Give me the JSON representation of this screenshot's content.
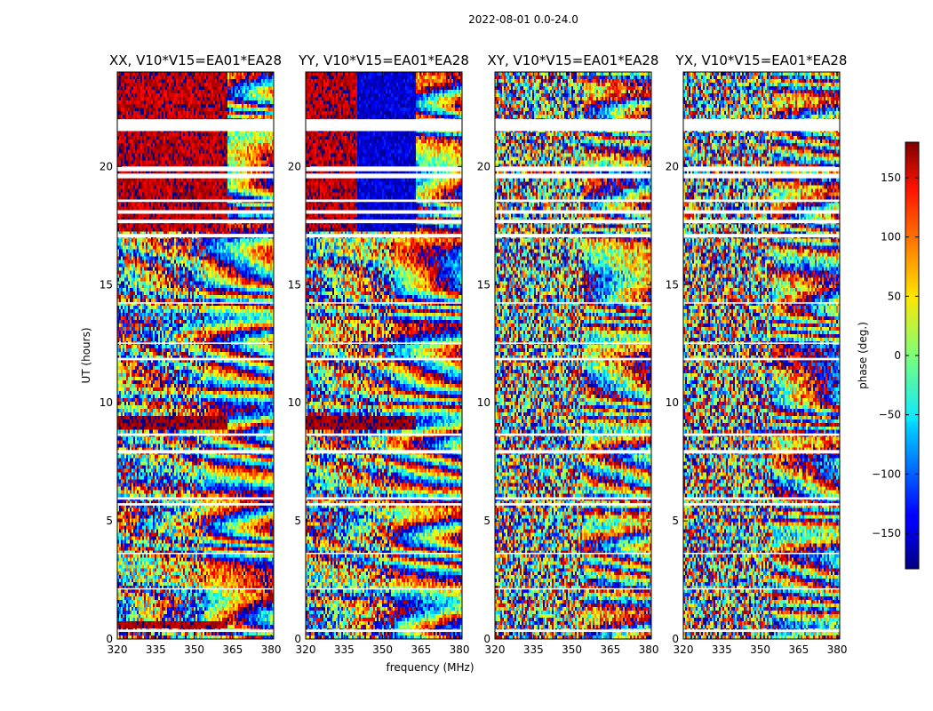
{
  "figure_title": "2022-08-01 0.0-24.0",
  "chart_data": [
    {
      "type": "heatmap",
      "title": "XX, V10*V15=EA01*EA28",
      "pol": "XX",
      "xlabel": "",
      "ylabel": "UT (hours)",
      "xlim": [
        320,
        381
      ],
      "ylim": [
        0,
        24
      ],
      "xticks": [
        320,
        335,
        350,
        365,
        380
      ],
      "yticks": [
        0,
        5,
        10,
        15,
        20
      ],
      "colormap": "jet"
    },
    {
      "type": "heatmap",
      "title": "YY, V10*V15=EA01*EA28",
      "pol": "YY",
      "xlabel": "frequency (MHz)",
      "ylabel": "",
      "xlim": [
        320,
        381
      ],
      "ylim": [
        0,
        24
      ],
      "xticks": [
        320,
        335,
        350,
        365,
        380
      ],
      "yticks": [
        0,
        5,
        10,
        15,
        20
      ],
      "colormap": "jet"
    },
    {
      "type": "heatmap",
      "title": "XY, V10*V15=EA01*EA28",
      "pol": "XY",
      "xlabel": "",
      "ylabel": "",
      "xlim": [
        320,
        381
      ],
      "ylim": [
        0,
        24
      ],
      "xticks": [
        320,
        335,
        350,
        365,
        380
      ],
      "yticks": [
        0,
        5,
        10,
        15,
        20
      ],
      "colormap": "jet"
    },
    {
      "type": "heatmap",
      "title": "YX, V10*V15=EA01*EA28",
      "pol": "YX",
      "xlabel": "",
      "ylabel": "",
      "xlim": [
        320,
        381
      ],
      "ylim": [
        0,
        24
      ],
      "xticks": [
        320,
        335,
        350,
        365,
        380
      ],
      "yticks": [
        0,
        5,
        10,
        15,
        20
      ],
      "colormap": "jet"
    }
  ],
  "colorbar": {
    "label": "phase (deg.)",
    "range": [
      -180,
      180
    ],
    "ticks": [
      -150,
      -100,
      -50,
      0,
      50,
      100,
      150
    ],
    "tick_labels": [
      "−150",
      "−100",
      "−50",
      "0",
      "50",
      "100",
      "150"
    ],
    "colormap": "jet"
  },
  "flagged_time_bands": [
    [
      22.0,
      21.5
    ],
    [
      20.0,
      19.8
    ],
    [
      19.7,
      19.5
    ],
    [
      18.6,
      18.5
    ],
    [
      18.15,
      18.0
    ],
    [
      17.75,
      17.6
    ],
    [
      17.15,
      17.0
    ],
    [
      14.25,
      14.2
    ],
    [
      12.55,
      12.5
    ],
    [
      11.9,
      11.8
    ],
    [
      8.7,
      8.6
    ],
    [
      8.0,
      7.85
    ],
    [
      6.0,
      5.9
    ],
    [
      5.75,
      5.65
    ],
    [
      3.65,
      3.6
    ],
    [
      2.15,
      2.1
    ],
    [
      0.4,
      0.3
    ]
  ],
  "colors": {
    "flag": "#ffffff",
    "axis": "#000000",
    "background": "#ffffff"
  }
}
